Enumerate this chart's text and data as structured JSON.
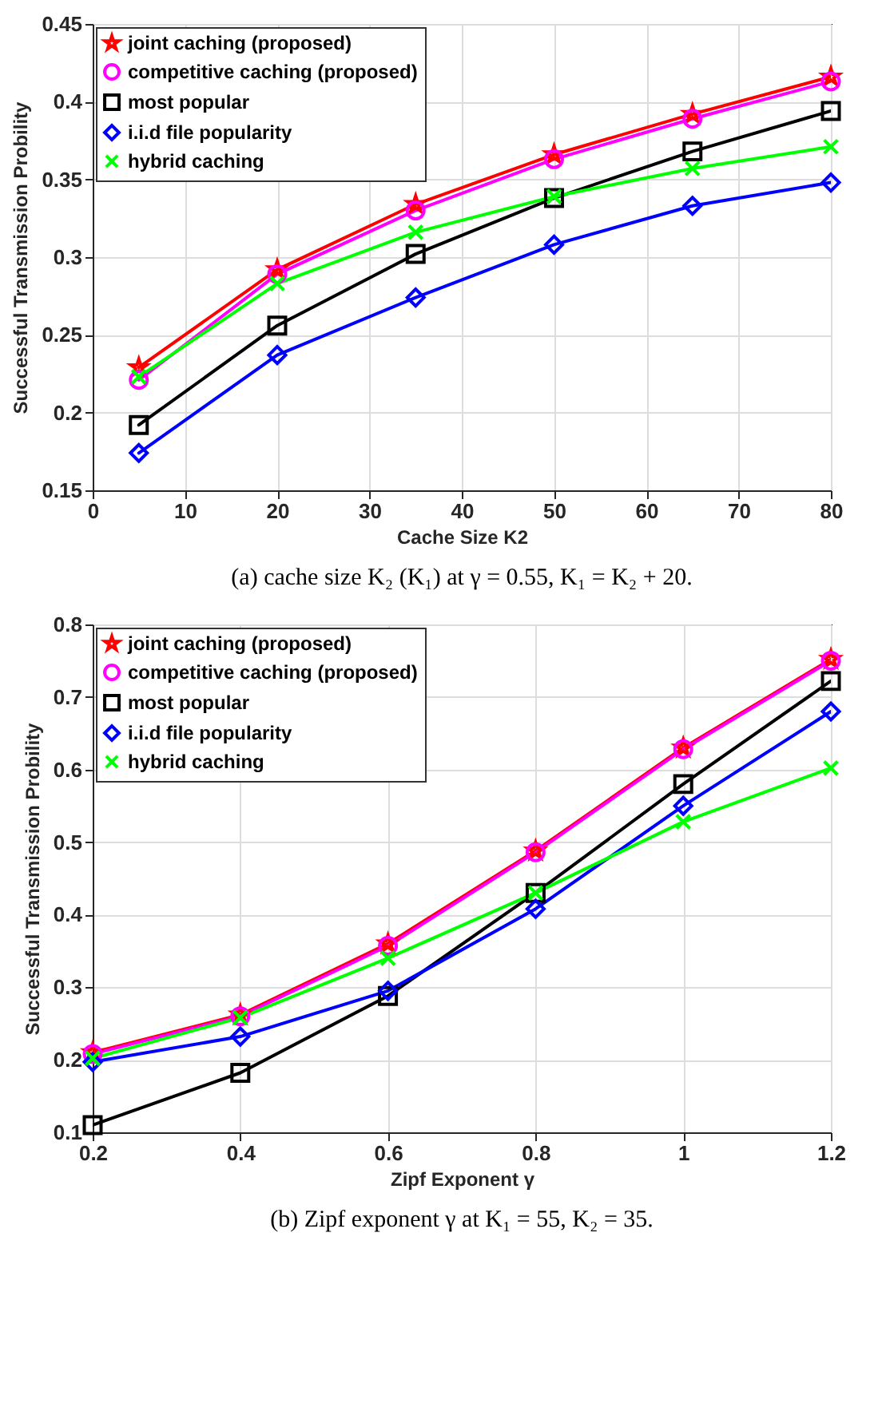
{
  "chart_data": [
    {
      "type": "line",
      "xlabel": "Cache Size K2",
      "ylabel": "Successful Transmission Probility",
      "x": [
        5,
        20,
        35,
        50,
        65,
        80
      ],
      "xlim": [
        0,
        80
      ],
      "xticks": [
        0,
        10,
        20,
        30,
        40,
        50,
        60,
        70,
        80
      ],
      "ylim": [
        0.15,
        0.45
      ],
      "yticks": [
        0.15,
        0.2,
        0.25,
        0.3,
        0.35,
        0.4,
        0.45
      ],
      "grid": true,
      "legend": "top left",
      "line_style": "solid",
      "annotations": [
        "(a)  cache size K₂ (K₁) at γ = 0.55, K₁ = K₂ + 20."
      ],
      "series": [
        {
          "name": "joint caching (proposed)",
          "color": "#ff0000",
          "marker": "star",
          "values": [
            0.229,
            0.292,
            0.334,
            0.366,
            0.392,
            0.416
          ]
        },
        {
          "name": "competitive caching (proposed)",
          "color": "#ff00ff",
          "marker": "circle",
          "values": [
            0.221,
            0.289,
            0.33,
            0.363,
            0.389,
            0.413
          ]
        },
        {
          "name": "most popular",
          "color": "#000000",
          "marker": "square",
          "values": [
            0.192,
            0.256,
            0.302,
            0.338,
            0.368,
            0.394
          ]
        },
        {
          "name": "i.i.d file popularity",
          "color": "#0000ff",
          "marker": "diamond",
          "values": [
            0.174,
            0.237,
            0.274,
            0.308,
            0.333,
            0.348
          ]
        },
        {
          "name": "hybrid caching",
          "color": "#00ff00",
          "marker": "cross",
          "values": [
            0.223,
            0.283,
            0.316,
            0.339,
            0.357,
            0.371
          ]
        }
      ]
    },
    {
      "type": "line",
      "xlabel": "Zipf Exponent γ",
      "ylabel": "Successful Transmission Probility",
      "x": [
        0.2,
        0.4,
        0.6,
        0.8,
        1,
        1.2
      ],
      "xlim": [
        0.2,
        1.2
      ],
      "xticks": [
        0.2,
        0.4,
        0.6,
        0.8,
        1,
        1.2
      ],
      "ylim": [
        0.1,
        0.8
      ],
      "yticks": [
        0.1,
        0.2,
        0.3,
        0.4,
        0.5,
        0.6,
        0.7,
        0.8
      ],
      "grid": true,
      "legend": "top left",
      "line_style": "solid",
      "annotations": [
        "(b) Zipf exponent γ at K₁ = 55, K₂ = 35."
      ],
      "series": [
        {
          "name": "joint caching (proposed)",
          "color": "#ff0000",
          "marker": "star",
          "values": [
            0.21,
            0.262,
            0.36,
            0.488,
            0.63,
            0.752
          ]
        },
        {
          "name": "competitive caching (proposed)",
          "color": "#ff00ff",
          "marker": "circle",
          "values": [
            0.208,
            0.26,
            0.357,
            0.486,
            0.628,
            0.75
          ]
        },
        {
          "name": "most popular",
          "color": "#000000",
          "marker": "square",
          "values": [
            0.11,
            0.182,
            0.288,
            0.43,
            0.58,
            0.722
          ]
        },
        {
          "name": "i.i.d file popularity",
          "color": "#0000ff",
          "marker": "diamond",
          "values": [
            0.197,
            0.232,
            0.295,
            0.408,
            0.55,
            0.68
          ]
        },
        {
          "name": "hybrid caching",
          "color": "#00ff00",
          "marker": "cross",
          "values": [
            0.202,
            0.258,
            0.34,
            0.43,
            0.528,
            0.602
          ]
        }
      ]
    }
  ]
}
